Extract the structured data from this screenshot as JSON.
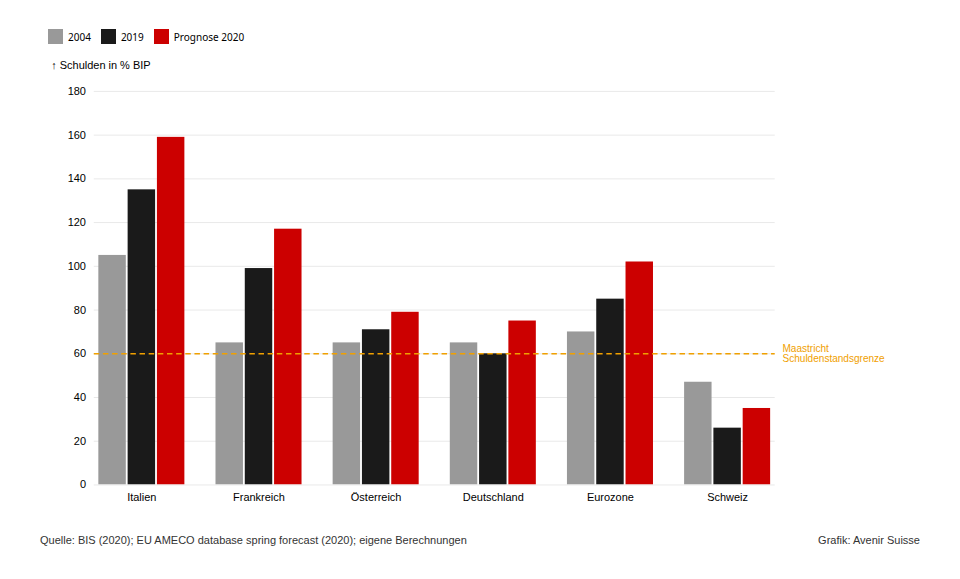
{
  "chart_data": {
    "type": "bar",
    "ylabel": "Schulden in % BIP",
    "categories": [
      "Italien",
      "Frankreich",
      "Österreich",
      "Deutschland",
      "Eurozone",
      "Schweiz"
    ],
    "series": [
      {
        "name": "2004",
        "color": "#999999",
        "values": [
          105,
          65,
          65,
          65,
          70,
          47
        ]
      },
      {
        "name": "2019",
        "color": "#1a1a1a",
        "values": [
          135,
          99,
          71,
          60,
          85,
          26
        ]
      },
      {
        "name": "Prognose 2020",
        "color": "#cc0000",
        "values": [
          159,
          117,
          79,
          75,
          102,
          35
        ]
      }
    ],
    "ylim": [
      0,
      180
    ],
    "yticks": [
      0,
      20,
      40,
      60,
      80,
      100,
      120,
      140,
      160,
      180
    ],
    "grid": true,
    "legend": "top",
    "annotations": [
      {
        "text": "Maastricht\nSchuldenstandsgrenze",
        "y": 60,
        "color": "#f0a000",
        "line_style": "dashed"
      }
    ],
    "source": "Quelle: BIS (2020); EU AMECO database spring forecast (2020); eigene Berechnungen",
    "credit": "Grafik: Avenir Suisse"
  }
}
